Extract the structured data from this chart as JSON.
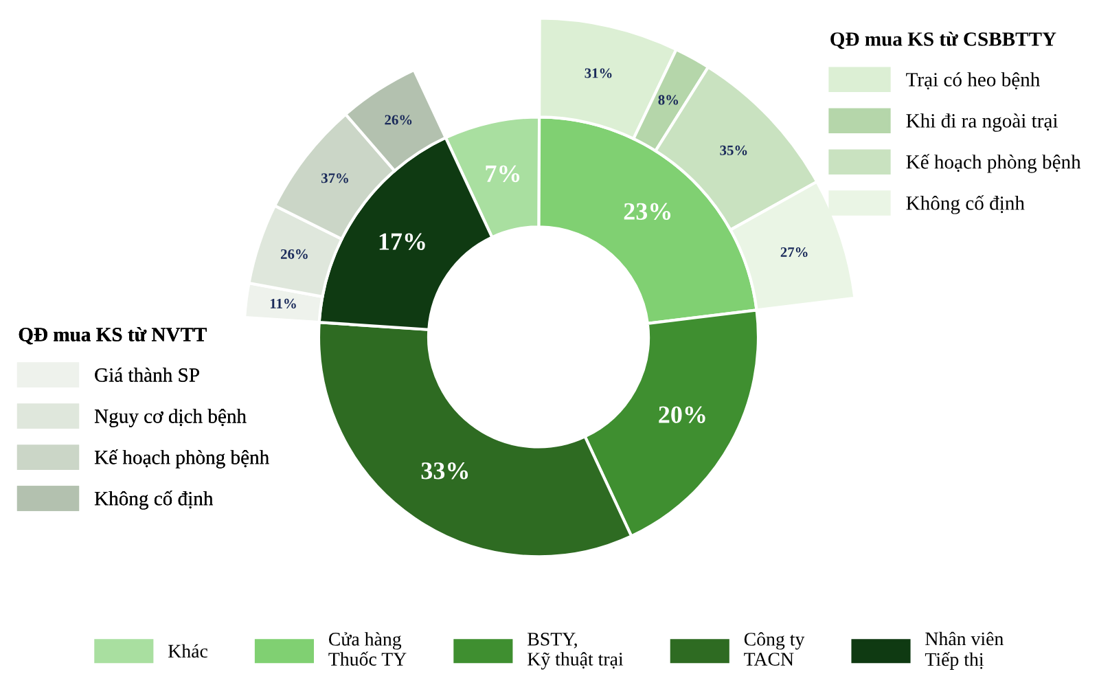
{
  "chart_data": {
    "type": "donut",
    "legend": "bottom",
    "categories": [
      "Khác",
      "Cửa hàng\nThuốc TY",
      "BSTY,\nKỹ thuật trại",
      "Công ty\nTACN",
      "Nhân viên\nTiếp thị",
      "Trại có heo bệnh",
      "Khi đi ra ngoài trại",
      "Kế hoạch phòng bệnh",
      "Không cố định",
      "Giá thành SP",
      "Nguy cơ dịch bệnh",
      "Kế hoạch phòng bệnh",
      "Không cố định"
    ],
    "series": [
      {
        "values": [
          7,
          23,
          20,
          33,
          17,
          null,
          null,
          null,
          null,
          null,
          null,
          null,
          null
        ],
        "value_labels": [
          "7%",
          "23%",
          "20%",
          "33%",
          "17%",
          null,
          null,
          null,
          null,
          null,
          null,
          null,
          null
        ],
        "colors": [
          "#a9dfa0",
          "#80d072",
          "#3f8f30",
          "#2e6b22",
          "#0f3a12",
          null,
          null,
          null,
          null,
          null,
          null,
          null,
          null
        ]
      },
      {
        "name": "QĐ mua KS từ CSBBTTY",
        "values": [
          null,
          null,
          null,
          null,
          null,
          31,
          8,
          35,
          27,
          null,
          null,
          null,
          null
        ],
        "value_labels": [
          null,
          null,
          null,
          null,
          null,
          "31%",
          "8%",
          "35%",
          "27%",
          null,
          null,
          null,
          null
        ],
        "colors": [
          null,
          null,
          null,
          null,
          null,
          "#dcefd4",
          "#b5d6aa",
          "#c9e2c0",
          "#eaf5e5",
          null,
          null,
          null,
          null
        ]
      },
      {
        "name": "QĐ mua KS từ NVTT",
        "values": [
          null,
          null,
          null,
          null,
          null,
          null,
          null,
          null,
          null,
          11,
          26,
          37,
          26
        ],
        "value_labels": [
          null,
          null,
          null,
          null,
          null,
          null,
          null,
          null,
          null,
          "11%",
          "26%",
          "37%",
          "26%"
        ],
        "colors": [
          null,
          null,
          null,
          null,
          null,
          null,
          null,
          null,
          null,
          "#eef2ec",
          "#dfe7dc",
          "#cbd6c7",
          "#b3c1af"
        ]
      }
    ]
  }
}
